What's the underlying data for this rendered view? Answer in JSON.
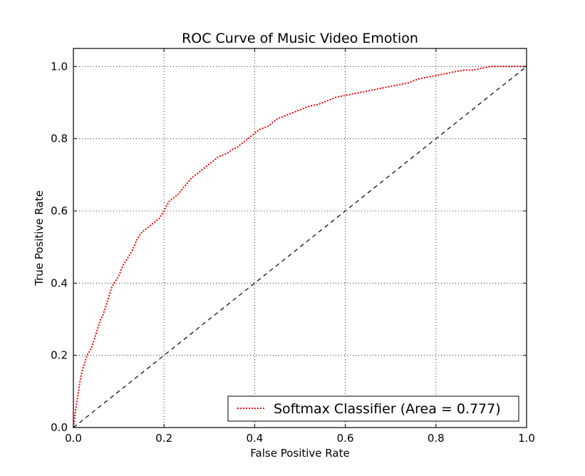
{
  "chart_data": {
    "type": "line",
    "title": "ROC Curve of Music Video Emotion",
    "xlabel": "False Positive Rate",
    "ylabel": "True Positive Rate",
    "xlim": [
      0.0,
      1.0
    ],
    "ylim": [
      0.0,
      1.05
    ],
    "xticks": [
      "0.0",
      "0.2",
      "0.4",
      "0.6",
      "0.8",
      "1.0"
    ],
    "yticks": [
      "0.0",
      "0.2",
      "0.4",
      "0.6",
      "0.8",
      "1.0"
    ],
    "grid": true,
    "legend_position": "bottom-right",
    "series": [
      {
        "name": "Softmax Classifier (Area = 0.777)",
        "color": "#ff0000",
        "style": "dotted",
        "x": [
          0.0,
          0.005,
          0.01,
          0.015,
          0.02,
          0.025,
          0.03,
          0.035,
          0.04,
          0.045,
          0.05,
          0.055,
          0.06,
          0.065,
          0.07,
          0.075,
          0.08,
          0.085,
          0.09,
          0.095,
          0.1,
          0.11,
          0.12,
          0.13,
          0.14,
          0.15,
          0.16,
          0.17,
          0.18,
          0.19,
          0.2,
          0.21,
          0.22,
          0.23,
          0.24,
          0.25,
          0.26,
          0.27,
          0.28,
          0.29,
          0.3,
          0.31,
          0.32,
          0.33,
          0.34,
          0.35,
          0.36,
          0.37,
          0.38,
          0.39,
          0.4,
          0.41,
          0.42,
          0.43,
          0.44,
          0.45,
          0.46,
          0.47,
          0.48,
          0.5,
          0.52,
          0.54,
          0.56,
          0.58,
          0.6,
          0.62,
          0.64,
          0.66,
          0.68,
          0.7,
          0.72,
          0.74,
          0.76,
          0.78,
          0.8,
          0.82,
          0.84,
          0.86,
          0.88,
          0.9,
          0.92,
          0.94,
          0.96,
          0.98,
          1.0
        ],
        "y": [
          0.0,
          0.05,
          0.09,
          0.13,
          0.16,
          0.18,
          0.2,
          0.21,
          0.22,
          0.24,
          0.26,
          0.28,
          0.3,
          0.31,
          0.33,
          0.35,
          0.37,
          0.39,
          0.4,
          0.41,
          0.42,
          0.45,
          0.47,
          0.49,
          0.52,
          0.54,
          0.55,
          0.56,
          0.57,
          0.58,
          0.6,
          0.625,
          0.635,
          0.645,
          0.66,
          0.675,
          0.69,
          0.7,
          0.71,
          0.72,
          0.73,
          0.74,
          0.75,
          0.755,
          0.76,
          0.77,
          0.775,
          0.785,
          0.795,
          0.805,
          0.815,
          0.825,
          0.83,
          0.835,
          0.845,
          0.855,
          0.86,
          0.865,
          0.87,
          0.88,
          0.89,
          0.895,
          0.905,
          0.915,
          0.92,
          0.925,
          0.93,
          0.935,
          0.94,
          0.945,
          0.95,
          0.955,
          0.965,
          0.97,
          0.975,
          0.98,
          0.985,
          0.99,
          0.99,
          0.995,
          1.0,
          1.0,
          1.0,
          1.0,
          1.0
        ]
      },
      {
        "color": "#000000",
        "style": "dashed",
        "x": [
          0.0,
          1.0
        ],
        "y": [
          0.0,
          1.0
        ]
      }
    ]
  }
}
